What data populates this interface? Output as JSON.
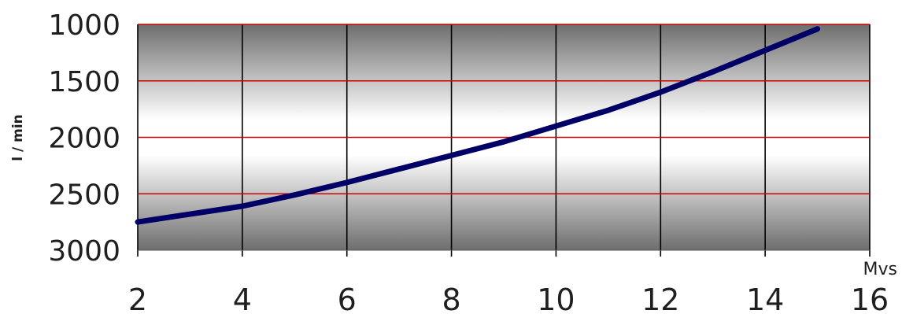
{
  "chart_data": {
    "type": "line",
    "title": "",
    "xlabel": "Mvs",
    "ylabel": "l / min",
    "x_ticks": [
      "2",
      "4",
      "6",
      "8",
      "10",
      "12",
      "14",
      "16"
    ],
    "y_ticks": [
      "1000",
      "1500",
      "2000",
      "2500",
      "3000"
    ],
    "xlim": [
      2,
      16
    ],
    "ylim": [
      1000,
      3000
    ],
    "y_axis_reversed": true,
    "grid": true,
    "series": [
      {
        "color": "#000066",
        "points": [
          {
            "x": 2,
            "y": 2750
          },
          {
            "x": 3,
            "y": 2680
          },
          {
            "x": 4,
            "y": 2610
          },
          {
            "x": 5,
            "y": 2510
          },
          {
            "x": 6,
            "y": 2400
          },
          {
            "x": 7,
            "y": 2280
          },
          {
            "x": 8,
            "y": 2160
          },
          {
            "x": 9,
            "y": 2040
          },
          {
            "x": 10,
            "y": 1900
          },
          {
            "x": 11,
            "y": 1760
          },
          {
            "x": 12,
            "y": 1600
          },
          {
            "x": 13,
            "y": 1420
          },
          {
            "x": 14,
            "y": 1230
          },
          {
            "x": 15,
            "y": 1040
          }
        ]
      }
    ],
    "colors": {
      "horizontal_grid": "#cc0000",
      "vertical_grid": "#000000",
      "background_edge": "#6f6f6f",
      "background_mid": "#ffffff"
    }
  }
}
